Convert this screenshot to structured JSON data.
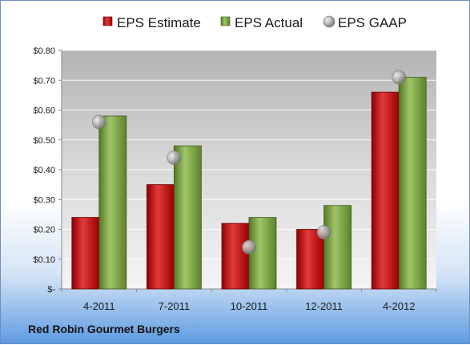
{
  "chart_data": {
    "type": "bar",
    "categories": [
      "4-2011",
      "7-2011",
      "10-2011",
      "12-2011",
      "4-2012"
    ],
    "series": [
      {
        "name": "EPS Estimate",
        "values": [
          0.24,
          0.35,
          0.22,
          0.2,
          0.66
        ],
        "color": "#c00000"
      },
      {
        "name": "EPS Actual",
        "values": [
          0.58,
          0.48,
          0.24,
          0.28,
          0.71
        ],
        "color": "#78a040"
      },
      {
        "name": "EPS GAAP",
        "values": [
          0.56,
          0.44,
          0.14,
          0.19,
          0.71
        ],
        "marker": "circle",
        "color": "#b0b0b0"
      }
    ],
    "ylim": [
      0,
      0.8
    ],
    "yticks": [
      {
        "value": 0.0,
        "label": "$-"
      },
      {
        "value": 0.1,
        "label": "$0.10"
      },
      {
        "value": 0.2,
        "label": "$0.20"
      },
      {
        "value": 0.3,
        "label": "$0.30"
      },
      {
        "value": 0.4,
        "label": "$0.40"
      },
      {
        "value": 0.5,
        "label": "$0.50"
      },
      {
        "value": 0.6,
        "label": "$0.60"
      },
      {
        "value": 0.7,
        "label": "$0.70"
      },
      {
        "value": 0.8,
        "label": "$0.80"
      }
    ],
    "grid": true,
    "legend": "top-center"
  },
  "footer": {
    "title": "Red Robin Gourmet Burgers"
  }
}
